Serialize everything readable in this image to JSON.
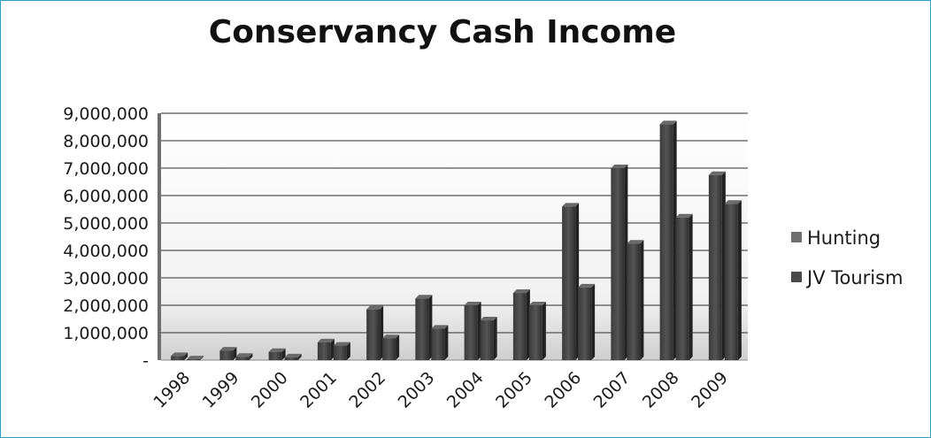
{
  "chart_data": {
    "type": "bar",
    "title": "Conservancy Cash Income",
    "xlabel": "",
    "ylabel": "",
    "categories": [
      "1998",
      "1999",
      "2000",
      "2001",
      "2002",
      "2003",
      "2004",
      "2005",
      "2006",
      "2007",
      "2008",
      "2009"
    ],
    "series": [
      {
        "name": "Hunting",
        "values": [
          150000,
          350000,
          300000,
          650000,
          1850000,
          2250000,
          2000000,
          2450000,
          5600000,
          7000000,
          8600000,
          6750000
        ]
      },
      {
        "name": "JV Tourism",
        "values": [
          30000,
          120000,
          100000,
          530000,
          800000,
          1150000,
          1450000,
          2000000,
          2650000,
          4250000,
          5200000,
          5700000
        ]
      }
    ],
    "ylim": [
      0,
      9000000
    ],
    "yticks": [
      0,
      1000000,
      2000000,
      3000000,
      4000000,
      5000000,
      6000000,
      7000000,
      8000000,
      9000000
    ],
    "ytick_labels": [
      "-",
      "1,000,000",
      "2,000,000",
      "3,000,000",
      "4,000,000",
      "5,000,000",
      "6,000,000",
      "7,000,000",
      "8,000,000",
      "9,000,000"
    ],
    "grid": true,
    "legend": "right",
    "colors": {
      "Hunting": "#4a4a4a",
      "JV Tourism": "#3c3c3c",
      "gridline": "#555555",
      "wall_top": "#f4f4f4",
      "wall_bottom": "#d2d2d2",
      "frame": "#2aa0c8"
    }
  }
}
